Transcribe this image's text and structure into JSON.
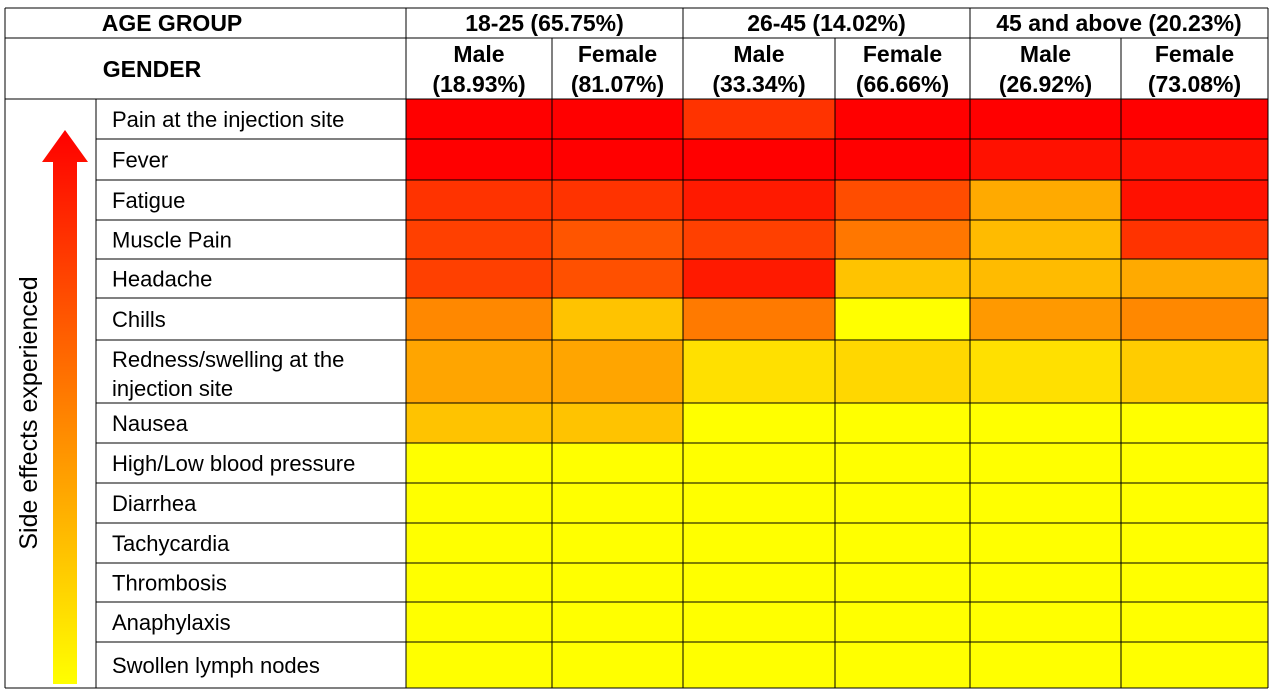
{
  "chart_data": {
    "type": "heatmap",
    "header_labels": {
      "age_group": "AGE GROUP",
      "gender": "GENDER"
    },
    "ylabel": "Side effects experienced",
    "age_groups": [
      {
        "label": "18-25 (65.75%)",
        "columns": 2
      },
      {
        "label": "26-45 (14.02%)",
        "columns": 2
      },
      {
        "label": "45 and above (20.23%)",
        "columns": 2
      }
    ],
    "columns": [
      {
        "gender": "Male",
        "pct": "(18.93%)"
      },
      {
        "gender": "Female",
        "pct": "(81.07%)"
      },
      {
        "gender": "Male",
        "pct": "(33.34%)"
      },
      {
        "gender": "Female",
        "pct": "(66.66%)"
      },
      {
        "gender": "Male",
        "pct": "(26.92%)"
      },
      {
        "gender": "Female",
        "pct": "(73.08%)"
      }
    ],
    "rows": [
      {
        "label": "Pain at the injection site",
        "colors": [
          "#ff0000",
          "#ff0000",
          "#ff3300",
          "#ff0000",
          "#ff0000",
          "#ff0000"
        ]
      },
      {
        "label": "Fever",
        "colors": [
          "#ff0000",
          "#ff0000",
          "#ff0000",
          "#ff0000",
          "#ff1100",
          "#ff1100"
        ]
      },
      {
        "label": "Fatigue",
        "colors": [
          "#ff3300",
          "#ff3300",
          "#ff1a00",
          "#ff4d00",
          "#ffaa00",
          "#ff1100"
        ]
      },
      {
        "label": "Muscle Pain",
        "colors": [
          "#ff4000",
          "#ff5500",
          "#ff4000",
          "#ff7700",
          "#ffbb00",
          "#ff3300"
        ]
      },
      {
        "label": "Headache",
        "colors": [
          "#ff4000",
          "#ff5000",
          "#ff1a00",
          "#ffc300",
          "#ffbb00",
          "#ffaa00"
        ]
      },
      {
        "label": "Chills",
        "colors": [
          "#ff8800",
          "#ffc300",
          "#ff7a00",
          "#ffff00",
          "#ff9900",
          "#ff8800"
        ]
      },
      {
        "label": "Redness/swelling at the injection site",
        "label_lines": [
          "Redness/swelling at the",
          "injection site"
        ],
        "colors": [
          "#ffa500",
          "#ffa500",
          "#ffe000",
          "#ffd700",
          "#ffe000",
          "#ffcc00"
        ]
      },
      {
        "label": "Nausea",
        "colors": [
          "#ffc300",
          "#ffc300",
          "#ffff00",
          "#ffff00",
          "#ffff00",
          "#ffff00"
        ]
      },
      {
        "label": "High/Low blood pressure",
        "colors": [
          "#ffff00",
          "#ffff00",
          "#ffff00",
          "#ffff00",
          "#ffff00",
          "#ffff00"
        ]
      },
      {
        "label": "Diarrhea",
        "colors": [
          "#ffff00",
          "#ffff00",
          "#ffff00",
          "#ffff00",
          "#ffff00",
          "#ffff00"
        ]
      },
      {
        "label": "Tachycardia",
        "colors": [
          "#ffff00",
          "#ffff00",
          "#ffff00",
          "#ffff00",
          "#ffff00",
          "#ffff00"
        ]
      },
      {
        "label": "Thrombosis",
        "colors": [
          "#ffff00",
          "#ffff00",
          "#ffff00",
          "#ffff00",
          "#ffff00",
          "#ffff00"
        ]
      },
      {
        "label": "Anaphylaxis",
        "colors": [
          "#ffff00",
          "#ffff00",
          "#ffff00",
          "#ffff00",
          "#ffff00",
          "#ffff00"
        ]
      },
      {
        "label": "Swollen lymph nodes",
        "colors": [
          "#ffff00",
          "#ffff00",
          "#ffff00",
          "#ffff00",
          "#ffff00",
          "#ffff00"
        ]
      }
    ],
    "arrow_gradient": [
      "#ff0000",
      "#ff3300",
      "#ff6600",
      "#ff9900",
      "#ffcc00",
      "#ffff00"
    ]
  }
}
